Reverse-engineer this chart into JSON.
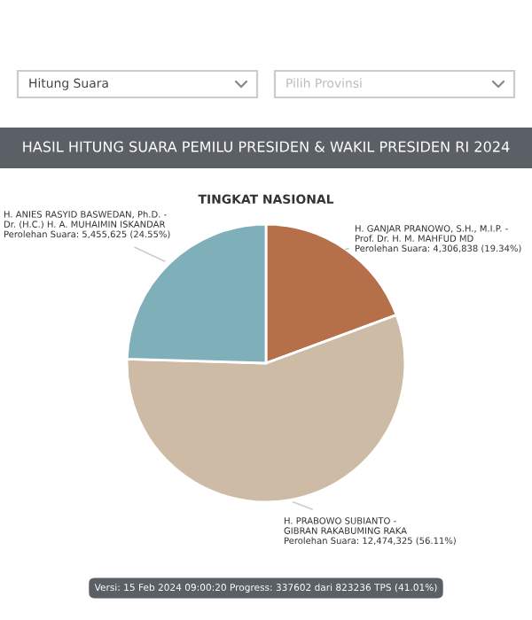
{
  "chart_data": {
    "type": "pie",
    "title": "HASIL HITUNG SUARA PEMILU PRESIDEN & WAKIL PRESIDEN RI 2024",
    "subtitle": "TINGKAT NASIONAL",
    "categories": [
      "H. GANJAR PRANOWO, S.H., M.I.P. - Prof. Dr. H. M. MAHFUD MD",
      "H. PRABOWO SUBIANTO - GIBRAN RAKABUMING RAKA",
      "H. ANIES RASYID BASWEDAN, Ph.D. - Dr. (H.C.) H. A. MUHAIMIN ISKANDAR"
    ],
    "values": [
      4306838,
      12474325,
      5455625
    ],
    "value_labels": [
      "Perolehan Suara: 4,306,838 (19.34%)",
      "Perolehan Suara: 12,474,325 (56.11%)",
      "Perolehan Suara: 5,455,625 (24.55%)"
    ],
    "colors": [
      "#b5704a",
      "#cdbba6",
      "#7fb0ba"
    ],
    "annotations": [
      "Hitung Suara",
      "Pilih Provinsi",
      "Versi: 15 Feb 2024 09:00:20 Progress: 337602 dari 823236 TPS (41.01%)"
    ]
  }
}
